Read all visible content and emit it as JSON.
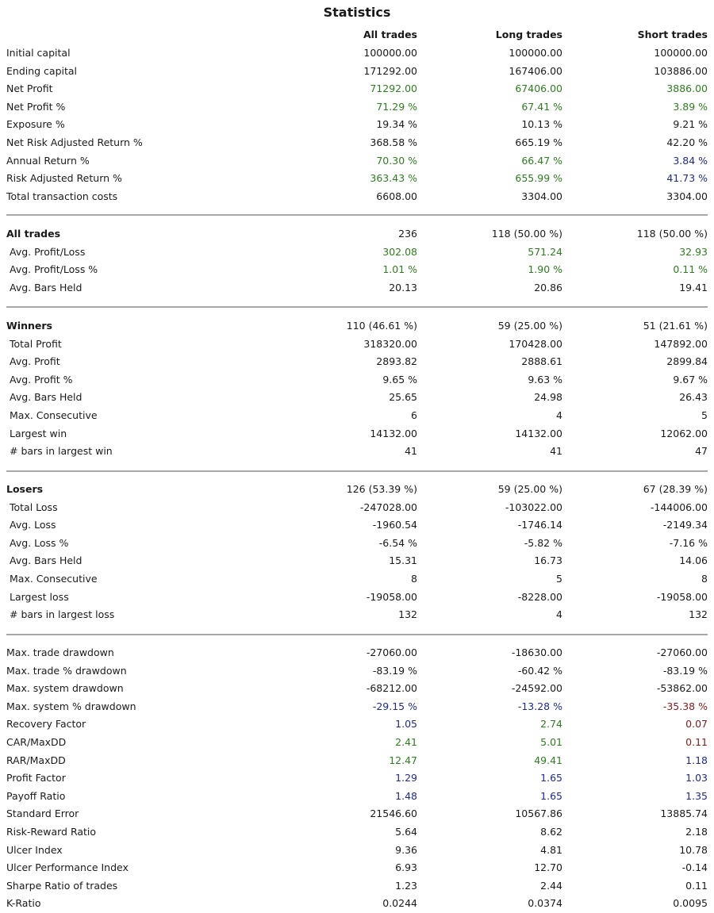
{
  "title": "Statistics",
  "headers": {
    "col1": "All trades",
    "col2": "Long trades",
    "col3": "Short trades"
  },
  "colors": {
    "green": "#2e7d1f",
    "blue": "#1f2a8c",
    "red": "#8b1a1a",
    "separator": "#a8a8a8"
  },
  "summary": [
    {
      "label": "Initial capital",
      "v": [
        "100000.00",
        "100000.00",
        "100000.00"
      ],
      "c": [
        "",
        "",
        ""
      ]
    },
    {
      "label": "Ending capital",
      "v": [
        "171292.00",
        "167406.00",
        "103886.00"
      ],
      "c": [
        "",
        "",
        ""
      ]
    },
    {
      "label": "Net Profit",
      "v": [
        "71292.00",
        "67406.00",
        "3886.00"
      ],
      "c": [
        "green",
        "green",
        "green"
      ]
    },
    {
      "label": "Net Profit %",
      "v": [
        "71.29 %",
        "67.41 %",
        "3.89 %"
      ],
      "c": [
        "green",
        "green",
        "green"
      ]
    },
    {
      "label": "Exposure %",
      "v": [
        "19.34 %",
        "10.13 %",
        "9.21 %"
      ],
      "c": [
        "",
        "",
        ""
      ]
    },
    {
      "label": "Net Risk Adjusted Return %",
      "v": [
        "368.58 %",
        "665.19 %",
        "42.20 %"
      ],
      "c": [
        "",
        "",
        ""
      ]
    },
    {
      "label": "Annual Return %",
      "v": [
        "70.30 %",
        "66.47 %",
        "3.84 %"
      ],
      "c": [
        "green",
        "green",
        "blue"
      ]
    },
    {
      "label": "Risk Adjusted Return %",
      "v": [
        "363.43 %",
        "655.99 %",
        "41.73 %"
      ],
      "c": [
        "green",
        "green",
        "blue"
      ]
    },
    {
      "label": "Total transaction costs",
      "v": [
        "6608.00",
        "3304.00",
        "3304.00"
      ],
      "c": [
        "",
        "",
        ""
      ]
    }
  ],
  "all_trades": [
    {
      "label": "All trades",
      "v": [
        "236",
        "118 (50.00 %)",
        "118 (50.00 %)"
      ],
      "c": [
        "",
        "",
        ""
      ],
      "head": true
    },
    {
      "label": "Avg. Profit/Loss",
      "v": [
        "302.08",
        "571.24",
        "32.93"
      ],
      "c": [
        "green",
        "green",
        "green"
      ]
    },
    {
      "label": "Avg. Profit/Loss %",
      "v": [
        "1.01 %",
        "1.90 %",
        "0.11 %"
      ],
      "c": [
        "green",
        "green",
        "green"
      ]
    },
    {
      "label": "Avg. Bars Held",
      "v": [
        "20.13",
        "20.86",
        "19.41"
      ],
      "c": [
        "",
        "",
        ""
      ]
    }
  ],
  "winners": [
    {
      "label": "Winners",
      "v": [
        "110 (46.61 %)",
        "59 (25.00 %)",
        "51 (21.61 %)"
      ],
      "c": [
        "",
        "",
        ""
      ],
      "head": true
    },
    {
      "label": "Total Profit",
      "v": [
        "318320.00",
        "170428.00",
        "147892.00"
      ],
      "c": [
        "",
        "",
        ""
      ]
    },
    {
      "label": "Avg. Profit",
      "v": [
        "2893.82",
        "2888.61",
        "2899.84"
      ],
      "c": [
        "",
        "",
        ""
      ]
    },
    {
      "label": "Avg. Profit %",
      "v": [
        "9.65 %",
        "9.63 %",
        "9.67 %"
      ],
      "c": [
        "",
        "",
        ""
      ]
    },
    {
      "label": "Avg. Bars Held",
      "v": [
        "25.65",
        "24.98",
        "26.43"
      ],
      "c": [
        "",
        "",
        ""
      ]
    },
    {
      "label": "Max. Consecutive",
      "v": [
        "6",
        "4",
        "5"
      ],
      "c": [
        "",
        "",
        ""
      ]
    },
    {
      "label": "Largest win",
      "v": [
        "14132.00",
        "14132.00",
        "12062.00"
      ],
      "c": [
        "",
        "",
        ""
      ]
    },
    {
      "label": "# bars in largest win",
      "v": [
        "41",
        "41",
        "47"
      ],
      "c": [
        "",
        "",
        ""
      ]
    }
  ],
  "losers": [
    {
      "label": "Losers",
      "v": [
        "126 (53.39 %)",
        "59 (25.00 %)",
        "67 (28.39 %)"
      ],
      "c": [
        "",
        "",
        ""
      ],
      "head": true
    },
    {
      "label": "Total Loss",
      "v": [
        "-247028.00",
        "-103022.00",
        "-144006.00"
      ],
      "c": [
        "",
        "",
        ""
      ]
    },
    {
      "label": "Avg. Loss",
      "v": [
        "-1960.54",
        "-1746.14",
        "-2149.34"
      ],
      "c": [
        "",
        "",
        ""
      ]
    },
    {
      "label": "Avg. Loss %",
      "v": [
        "-6.54 %",
        "-5.82 %",
        "-7.16 %"
      ],
      "c": [
        "",
        "",
        ""
      ]
    },
    {
      "label": "Avg. Bars Held",
      "v": [
        "15.31",
        "16.73",
        "14.06"
      ],
      "c": [
        "",
        "",
        ""
      ]
    },
    {
      "label": "Max. Consecutive",
      "v": [
        "8",
        "5",
        "8"
      ],
      "c": [
        "",
        "",
        ""
      ]
    },
    {
      "label": "Largest loss",
      "v": [
        "-19058.00",
        "-8228.00",
        "-19058.00"
      ],
      "c": [
        "",
        "",
        ""
      ]
    },
    {
      "label": "# bars in largest loss",
      "v": [
        "132",
        "4",
        "132"
      ],
      "c": [
        "",
        "",
        ""
      ]
    }
  ],
  "risk": [
    {
      "label": "Max. trade drawdown",
      "v": [
        "-27060.00",
        "-18630.00",
        "-27060.00"
      ],
      "c": [
        "",
        "",
        ""
      ]
    },
    {
      "label": "Max. trade % drawdown",
      "v": [
        "-83.19 %",
        "-60.42 %",
        "-83.19 %"
      ],
      "c": [
        "",
        "",
        ""
      ]
    },
    {
      "label": "Max. system drawdown",
      "v": [
        "-68212.00",
        "-24592.00",
        "-53862.00"
      ],
      "c": [
        "",
        "",
        ""
      ]
    },
    {
      "label": "Max. system % drawdown",
      "v": [
        "-29.15 %",
        "-13.28 %",
        "-35.38 %"
      ],
      "c": [
        "blue",
        "blue",
        "red"
      ]
    },
    {
      "label": "Recovery Factor",
      "v": [
        "1.05",
        "2.74",
        "0.07"
      ],
      "c": [
        "blue",
        "green",
        "red"
      ]
    },
    {
      "label": "CAR/MaxDD",
      "v": [
        "2.41",
        "5.01",
        "0.11"
      ],
      "c": [
        "green",
        "green",
        "red"
      ]
    },
    {
      "label": "RAR/MaxDD",
      "v": [
        "12.47",
        "49.41",
        "1.18"
      ],
      "c": [
        "green",
        "green",
        "blue"
      ]
    },
    {
      "label": "Profit Factor",
      "v": [
        "1.29",
        "1.65",
        "1.03"
      ],
      "c": [
        "blue",
        "blue",
        "blue"
      ]
    },
    {
      "label": "Payoff Ratio",
      "v": [
        "1.48",
        "1.65",
        "1.35"
      ],
      "c": [
        "blue",
        "blue",
        "blue"
      ]
    },
    {
      "label": "Standard Error",
      "v": [
        "21546.60",
        "10567.86",
        "13885.74"
      ],
      "c": [
        "",
        "",
        ""
      ]
    },
    {
      "label": "Risk-Reward Ratio",
      "v": [
        "5.64",
        "8.62",
        "2.18"
      ],
      "c": [
        "",
        "",
        ""
      ]
    },
    {
      "label": "Ulcer Index",
      "v": [
        "9.36",
        "4.81",
        "10.78"
      ],
      "c": [
        "",
        "",
        ""
      ]
    },
    {
      "label": "Ulcer Performance Index",
      "v": [
        "6.93",
        "12.70",
        "-0.14"
      ],
      "c": [
        "",
        "",
        ""
      ]
    },
    {
      "label": "Sharpe Ratio of trades",
      "v": [
        "1.23",
        "2.44",
        "0.11"
      ],
      "c": [
        "",
        "",
        ""
      ]
    },
    {
      "label": "K-Ratio",
      "v": [
        "0.0244",
        "0.0374",
        "0.0095"
      ],
      "c": [
        "",
        "",
        ""
      ]
    }
  ]
}
